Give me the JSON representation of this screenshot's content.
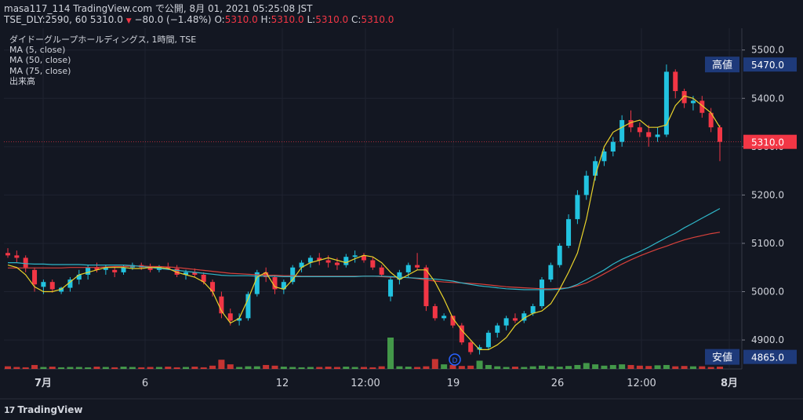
{
  "header": {
    "line1": "masa117_114 TradingView.com で公開, 8月 01, 2021 05:25:08 JST",
    "symbol": "TSE_DLY:2590, 60 5310.0",
    "change": "−80.0 (−1.48%)",
    "o_label": "O:",
    "o_value": "5310.0",
    "h_label": "H:",
    "h_value": "5310.0",
    "l_label": "L:",
    "l_value": "5310.0",
    "c_label": "C:",
    "c_value": "5310.0"
  },
  "legend": {
    "title": "ダイドーグループホールディングス, 1時間, TSE",
    "ma5": "MA (5, close)",
    "ma50": "MA (50, close)",
    "ma75": "MA (75, close)",
    "volume": "出来高"
  },
  "footer": {
    "brand": "TradingView",
    "mark": "17"
  },
  "colors": {
    "background": "#131722",
    "up": "#26a69a",
    "up_candle": "#22c3e0",
    "down": "#f23645",
    "ma5": "#e8d22a",
    "ma50": "#2fb6c8",
    "ma75": "#d8413b",
    "label_bg": "#1e3a7a"
  },
  "chart_data": {
    "type": "candlestick",
    "ylim": [
      4840,
      5545
    ],
    "yticks": [
      "5500.0",
      "5400.0",
      "5300.0",
      "5200.0",
      "5100.0",
      "5000.0",
      "4900.0"
    ],
    "xticks": [
      "7月",
      "6",
      "12",
      "12:00",
      "19",
      "26",
      "12:00",
      "8月"
    ],
    "last_price": "5310.0",
    "high_label": "高値",
    "high_value": "5470.0",
    "low_label": "安値",
    "low_value": "4865.0",
    "event_marker": "D",
    "ma5": [
      5055,
      5050,
      5035,
      5010,
      5000,
      5000,
      5005,
      5020,
      5035,
      5040,
      5045,
      5050,
      5050,
      5050,
      5048,
      5048,
      5050,
      5050,
      5048,
      5040,
      5035,
      5030,
      5020,
      5000,
      4960,
      4935,
      4945,
      4985,
      5030,
      5040,
      5010,
      5005,
      5025,
      5050,
      5060,
      5065,
      5070,
      5065,
      5060,
      5068,
      5075,
      5072,
      5060,
      5040,
      5025,
      5035,
      5045,
      5045,
      5020,
      4985,
      4945,
      4920,
      4900,
      4880,
      4880,
      4890,
      4905,
      4930,
      4945,
      4955,
      4960,
      4975,
      5005,
      5040,
      5080,
      5150,
      5240,
      5300,
      5330,
      5340,
      5350,
      5355,
      5340,
      5340,
      5345,
      5385,
      5405,
      5400,
      5385,
      5370,
      5340
    ],
    "ma50": [
      5060,
      5060,
      5058,
      5057,
      5057,
      5056,
      5056,
      5056,
      5056,
      5055,
      5055,
      5055,
      5055,
      5055,
      5054,
      5052,
      5050,
      5048,
      5046,
      5044,
      5042,
      5040,
      5038,
      5036,
      5034,
      5033,
      5033,
      5033,
      5032,
      5032,
      5032,
      5031,
      5031,
      5031,
      5031,
      5031,
      5031,
      5031,
      5031,
      5031,
      5032,
      5032,
      5032,
      5031,
      5030,
      5029,
      5028,
      5027,
      5026,
      5024,
      5022,
      5018,
      5015,
      5012,
      5010,
      5008,
      5006,
      5005,
      5004,
      5004,
      5004,
      5004,
      5005,
      5008,
      5015,
      5025,
      5035,
      5045,
      5057,
      5067,
      5075,
      5083,
      5092,
      5102,
      5112,
      5121,
      5132,
      5142,
      5152,
      5162,
      5172
    ],
    "ma75": [
      5049,
      5049,
      5049,
      5049,
      5049,
      5049,
      5049,
      5050,
      5050,
      5050,
      5050,
      5051,
      5052,
      5052,
      5053,
      5053,
      5052,
      5052,
      5051,
      5050,
      5048,
      5046,
      5044,
      5042,
      5040,
      5038,
      5037,
      5036,
      5035,
      5034,
      5034,
      5033,
      5033,
      5032,
      5032,
      5032,
      5032,
      5032,
      5032,
      5032,
      5032,
      5032,
      5031,
      5030,
      5030,
      5029,
      5027,
      5024,
      5022,
      5020,
      5019,
      5018,
      5017,
      5016,
      5014,
      5012,
      5010,
      5009,
      5008,
      5007,
      5006,
      5006,
      5007,
      5008,
      5012,
      5018,
      5027,
      5037,
      5047,
      5057,
      5066,
      5074,
      5081,
      5088,
      5094,
      5101,
      5107,
      5112,
      5116,
      5120,
      5123
    ],
    "candles": [
      [
        5080,
        5090,
        5070,
        5075
      ],
      [
        5075,
        5085,
        5060,
        5070
      ],
      [
        5070,
        5075,
        5040,
        5050
      ],
      [
        5045,
        5050,
        5000,
        5015
      ],
      [
        5010,
        5025,
        4995,
        5020
      ],
      [
        5020,
        5025,
        4998,
        5005
      ],
      [
        5000,
        5010,
        4995,
        5008
      ],
      [
        5008,
        5030,
        5000,
        5025
      ],
      [
        5025,
        5045,
        5015,
        5035
      ],
      [
        5035,
        5055,
        5025,
        5050
      ],
      [
        5050,
        5060,
        5040,
        5045
      ],
      [
        5045,
        5055,
        5035,
        5050
      ],
      [
        5045,
        5052,
        5030,
        5040
      ],
      [
        5040,
        5055,
        5035,
        5050
      ],
      [
        5050,
        5060,
        5045,
        5055
      ],
      [
        5055,
        5060,
        5045,
        5050
      ],
      [
        5050,
        5058,
        5040,
        5045
      ],
      [
        5045,
        5055,
        5040,
        5052
      ],
      [
        5052,
        5060,
        5045,
        5048
      ],
      [
        5048,
        5055,
        5030,
        5035
      ],
      [
        5035,
        5045,
        5025,
        5040
      ],
      [
        5040,
        5048,
        5030,
        5035
      ],
      [
        5035,
        5040,
        5015,
        5020
      ],
      [
        5020,
        5025,
        4990,
        5000
      ],
      [
        4990,
        5000,
        4945,
        4955
      ],
      [
        4955,
        4965,
        4930,
        4940
      ],
      [
        4940,
        4955,
        4930,
        4945
      ],
      [
        4945,
        5000,
        4940,
        4995
      ],
      [
        4995,
        5045,
        4990,
        5040
      ],
      [
        5040,
        5050,
        5020,
        5030
      ],
      [
        5030,
        5035,
        4995,
        5005
      ],
      [
        5005,
        5025,
        4995,
        5020
      ],
      [
        5020,
        5055,
        5015,
        5050
      ],
      [
        5050,
        5065,
        5040,
        5060
      ],
      [
        5060,
        5075,
        5050,
        5070
      ],
      [
        5070,
        5080,
        5055,
        5065
      ],
      [
        5065,
        5075,
        5050,
        5060
      ],
      [
        5060,
        5070,
        5045,
        5055
      ],
      [
        5055,
        5078,
        5050,
        5072
      ],
      [
        5072,
        5085,
        5060,
        5075
      ],
      [
        5075,
        5080,
        5060,
        5065
      ],
      [
        5065,
        5072,
        5045,
        5050
      ],
      [
        5050,
        5055,
        5030,
        5035
      ],
      [
        4990,
        5030,
        4980,
        5025
      ],
      [
        5025,
        5045,
        5015,
        5040
      ],
      [
        5040,
        5060,
        5030,
        5055
      ],
      [
        5055,
        5080,
        5045,
        5050
      ],
      [
        5050,
        5055,
        4960,
        4970
      ],
      [
        4970,
        4975,
        4940,
        4945
      ],
      [
        4945,
        4955,
        4940,
        4950
      ],
      [
        4950,
        4950,
        4925,
        4930
      ],
      [
        4930,
        4935,
        4890,
        4895
      ],
      [
        4895,
        4900,
        4870,
        4875
      ],
      [
        4880,
        4890,
        4870,
        4885
      ],
      [
        4885,
        4920,
        4880,
        4915
      ],
      [
        4915,
        4935,
        4905,
        4930
      ],
      [
        4930,
        4950,
        4920,
        4945
      ],
      [
        4945,
        4955,
        4935,
        4940
      ],
      [
        4940,
        4960,
        4935,
        4955
      ],
      [
        4955,
        4975,
        4950,
        4970
      ],
      [
        4970,
        5030,
        4965,
        5025
      ],
      [
        5025,
        5060,
        5020,
        5055
      ],
      [
        5055,
        5100,
        5050,
        5095
      ],
      [
        5095,
        5160,
        5090,
        5150
      ],
      [
        5150,
        5210,
        5140,
        5200
      ],
      [
        5200,
        5250,
        5190,
        5240
      ],
      [
        5240,
        5280,
        5230,
        5270
      ],
      [
        5270,
        5295,
        5260,
        5290
      ],
      [
        5290,
        5320,
        5280,
        5310
      ],
      [
        5310,
        5365,
        5300,
        5355
      ],
      [
        5355,
        5375,
        5330,
        5340
      ],
      [
        5340,
        5350,
        5320,
        5330
      ],
      [
        5330,
        5345,
        5300,
        5320
      ],
      [
        5320,
        5340,
        5310,
        5325
      ],
      [
        5325,
        5470,
        5320,
        5455
      ],
      [
        5455,
        5460,
        5400,
        5415
      ],
      [
        5415,
        5420,
        5380,
        5390
      ],
      [
        5390,
        5405,
        5375,
        5395
      ],
      [
        5395,
        5405,
        5360,
        5370
      ],
      [
        5370,
        5380,
        5330,
        5340
      ],
      [
        5340,
        5345,
        5270,
        5310
      ]
    ],
    "volume": [
      8,
      6,
      5,
      12,
      6,
      7,
      5,
      6,
      6,
      5,
      7,
      6,
      5,
      7,
      6,
      5,
      6,
      6,
      7,
      5,
      6,
      7,
      5,
      10,
      28,
      14,
      6,
      8,
      8,
      12,
      10,
      7,
      6,
      5,
      6,
      6,
      7,
      6,
      7,
      6,
      6,
      5,
      8,
      95,
      8,
      7,
      6,
      8,
      30,
      14,
      12,
      9,
      10,
      25,
      12,
      8,
      6,
      7,
      6,
      8,
      10,
      8,
      7,
      9,
      12,
      18,
      14,
      10,
      12,
      14,
      12,
      10,
      9,
      11,
      12,
      8,
      9,
      8,
      8,
      6,
      7
    ]
  }
}
